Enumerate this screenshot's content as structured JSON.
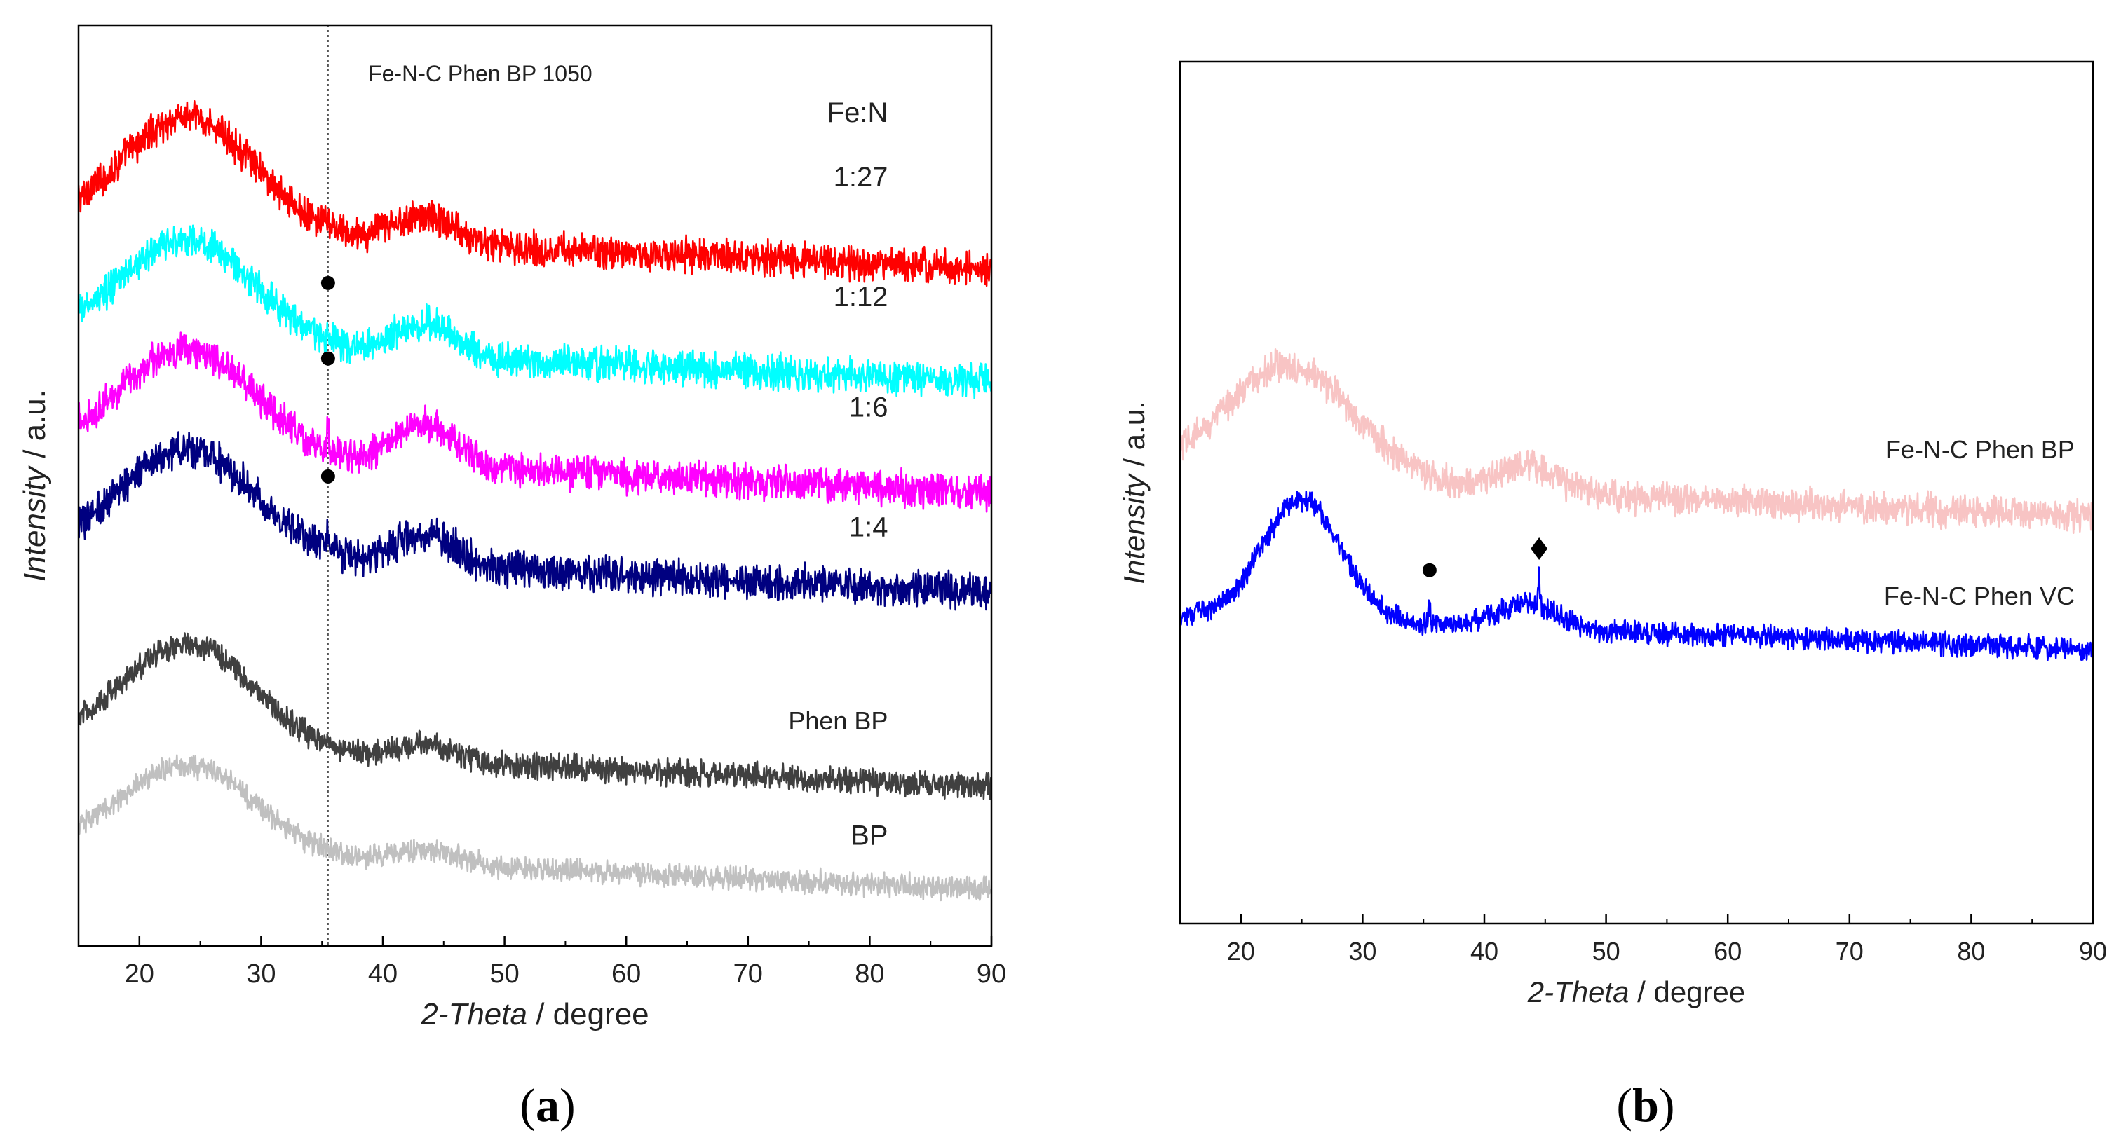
{
  "chart_data": [
    {
      "type": "line",
      "panel_label": "(a)",
      "title": "Fe-N-C Phen BP 1050",
      "xlabel_italic": "2-Theta",
      "xlabel_rest": " / degree",
      "ylabel_italic": "Intensity",
      "ylabel_rest": " / a.u.",
      "xlim": [
        15,
        90
      ],
      "ylim": [
        0,
        100
      ],
      "xticks": [
        20,
        30,
        40,
        50,
        60,
        70,
        80,
        90
      ],
      "yticks_shown": false,
      "legend_header": "Fe:N",
      "reference_line_x": 35.5,
      "series": [
        {
          "name": "1:27",
          "color": "#ff0000",
          "base": 73.5,
          "amp": 12.5,
          "p2": 3.0,
          "noise": 1.6,
          "ramp": 4.5
        },
        {
          "name": "1:12",
          "color": "#00ffff",
          "base": 61.3,
          "amp": 11.5,
          "p2": 3.5,
          "noise": 1.6,
          "ramp": 4.5
        },
        {
          "name": "1:6",
          "color": "#ff00ff",
          "base": 49.3,
          "amp": 11.5,
          "p2": 4.5,
          "noise": 1.6,
          "ramp": 4.5,
          "peaks": [
            {
              "x": 35.5,
              "h": 3.5
            }
          ]
        },
        {
          "name": "1:4",
          "color": "#000080",
          "base": 38.4,
          "amp": 11.5,
          "p2": 3.5,
          "noise": 1.7,
          "ramp": 4.5,
          "peaks": [
            {
              "x": 35.5,
              "h": 3.0
            }
          ]
        },
        {
          "name": "Phen BP",
          "color": "#404040",
          "base": 17.3,
          "amp": 11.5,
          "p2": 1.8,
          "noise": 1.2,
          "ramp": 4.5
        },
        {
          "name": "BP",
          "color": "#c0c0c0",
          "base": 6.1,
          "amp": 9.5,
          "p2": 1.5,
          "noise": 1.1,
          "ramp": 4.5
        }
      ],
      "markers": [
        {
          "x": 35.5,
          "y": 72.0,
          "shape": "circle"
        },
        {
          "x": 35.5,
          "y": 63.8,
          "shape": "circle"
        },
        {
          "x": 35.5,
          "y": 51.0,
          "shape": "circle"
        }
      ],
      "labels": [
        {
          "text": "Fe:N",
          "x": 81.5,
          "y": 89.5
        },
        {
          "text": "1:27",
          "x": 81.5,
          "y": 82.5
        },
        {
          "text": "1:12",
          "x": 81.5,
          "y": 69.5
        },
        {
          "text": "1:6",
          "x": 81.5,
          "y": 57.5
        },
        {
          "text": "1:4",
          "x": 81.5,
          "y": 44.5
        },
        {
          "text": "Phen BP",
          "x": 81.5,
          "y": 23.5
        },
        {
          "text": "BP",
          "x": 81.5,
          "y": 11.0
        }
      ]
    },
    {
      "type": "line",
      "panel_label": "(b)",
      "xlabel_italic": "2-Theta",
      "xlabel_rest": " / degree",
      "ylabel_italic": "Intensity",
      "ylabel_rest": " / a.u.",
      "xlim": [
        15,
        90
      ],
      "ylim": [
        0,
        100
      ],
      "xticks": [
        20,
        30,
        40,
        50,
        60,
        70,
        80,
        90
      ],
      "yticks_shown": false,
      "series": [
        {
          "name": "Fe-N-C Phen BP",
          "color": "#f8c4c4",
          "base": 47.2,
          "amp": 13.5,
          "p2": 3.0,
          "noise": 1.6,
          "ramp": 4.5
        },
        {
          "name": "Fe-N-C Phen VC",
          "color": "#0000ff",
          "base": 31.8,
          "amp": 14.0,
          "p2": 2.8,
          "noise": 1.1,
          "ramp": 4.0,
          "c1": 25.0,
          "w1": 3.2,
          "peaks": [
            {
              "x": 35.5,
              "h": 2.5
            },
            {
              "x": 44.5,
              "h": 4.0
            }
          ]
        }
      ],
      "markers": [
        {
          "x": 35.5,
          "y": 41.0,
          "shape": "circle"
        },
        {
          "x": 44.5,
          "y": 43.5,
          "shape": "diamond"
        }
      ],
      "labels": [
        {
          "text": "Fe-N-C Phen BP",
          "x": 88.5,
          "y": 54.0
        },
        {
          "text": "Fe-N-C Phen VC",
          "x": 88.5,
          "y": 37.0
        }
      ]
    }
  ]
}
